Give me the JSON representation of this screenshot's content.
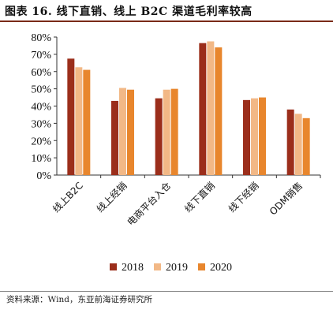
{
  "figure_title": "图表 16. 线下直销、线上 B2C 渠道毛利率较高",
  "source_note": "资料来源：Wind，东亚前海证券研究所",
  "chart_data": {
    "type": "bar",
    "title": "",
    "xlabel": "",
    "ylabel": "",
    "ylim": [
      0,
      80
    ],
    "yticks": [
      "0%",
      "10%",
      "20%",
      "30%",
      "40%",
      "50%",
      "60%",
      "70%",
      "80%"
    ],
    "grid": false,
    "legend_position": "bottom",
    "categories": [
      "线上B2C",
      "线上经销",
      "电商平台入仓",
      "线下直销",
      "线下经销",
      "ODM销售"
    ],
    "series": [
      {
        "name": "2018",
        "color": "#9b2e1b",
        "values": [
          67.5,
          43,
          44.5,
          76.5,
          43.5,
          38
        ]
      },
      {
        "name": "2019",
        "color": "#f2b886",
        "values": [
          62.5,
          50.5,
          49.5,
          77.5,
          44.5,
          35.5
        ]
      },
      {
        "name": "2020",
        "color": "#e8862d",
        "values": [
          61,
          49.5,
          50,
          74,
          45,
          33
        ]
      }
    ]
  }
}
